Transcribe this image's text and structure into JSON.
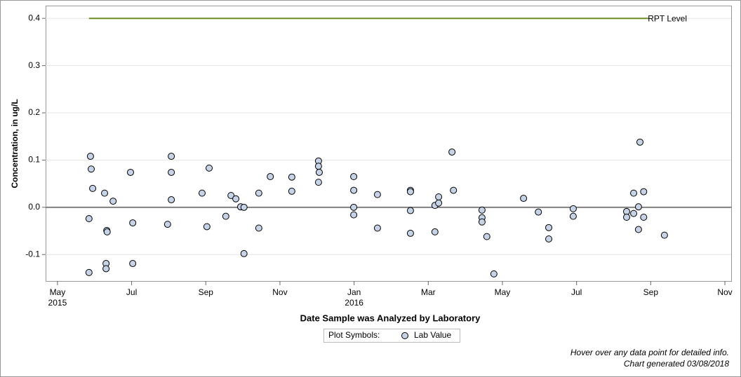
{
  "chart_data": {
    "type": "scatter",
    "x_label": "Date Sample was Analyzed by Laboratory",
    "y_label": "Concentration, in ug/L",
    "xlim": [
      -0.32,
      18.17
    ],
    "ylim": [
      -0.156,
      0.427
    ],
    "xticks": [
      {
        "value": 0,
        "label": "May 2015"
      },
      {
        "value": 2,
        "label": "Jul"
      },
      {
        "value": 4,
        "label": "Sep"
      },
      {
        "value": 6,
        "label": "Nov"
      },
      {
        "value": 8,
        "label": "Jan 2016"
      },
      {
        "value": 10,
        "label": "Mar"
      },
      {
        "value": 12,
        "label": "May"
      },
      {
        "value": 14,
        "label": "Jul"
      },
      {
        "value": 16,
        "label": "Sep"
      },
      {
        "value": 18,
        "label": "Nov"
      }
    ],
    "yticks": [
      -0.1,
      {
        "value": 0,
        "label": "0.0"
      },
      0.1,
      0.2,
      0.3,
      0.4
    ],
    "grid": true,
    "reference_line": {
      "name": "RPT Level",
      "value": 0.4,
      "x": [
        0.85,
        15.96
      ],
      "color": "#6b8e23"
    },
    "legend_title": "Plot Symbols:",
    "series": [
      {
        "name": "Lab Value",
        "color": "#c6d3e6",
        "x": [
          0.85,
          0.85,
          0.89,
          0.91,
          0.95,
          1.27,
          1.31,
          1.31,
          1.33,
          1.34,
          1.5,
          1.97,
          2.03,
          2.03,
          2.97,
          3.07,
          3.07,
          3.07,
          3.9,
          4.03,
          4.09,
          4.54,
          4.68,
          4.81,
          4.94,
          5.03,
          5.03,
          5.43,
          5.43,
          5.74,
          6.32,
          6.32,
          7.04,
          7.04,
          7.06,
          7.04,
          7.99,
          7.99,
          7.99,
          7.99,
          8.63,
          8.63,
          9.52,
          9.52,
          9.52,
          9.52,
          10.18,
          10.18,
          10.28,
          10.28,
          10.64,
          10.68,
          11.45,
          11.45,
          11.45,
          11.58,
          11.77,
          12.57,
          12.97,
          13.25,
          13.25,
          13.91,
          13.91,
          15.35,
          15.35,
          15.54,
          15.54,
          15.67,
          15.67,
          15.71,
          15.81,
          15.81,
          16.37
        ],
        "values": [
          -0.138,
          -0.024,
          0.108,
          0.081,
          0.04,
          0.03,
          -0.119,
          -0.13,
          -0.049,
          -0.052,
          0.013,
          0.074,
          -0.033,
          -0.119,
          -0.036,
          0.108,
          0.074,
          0.016,
          0.03,
          -0.041,
          0.083,
          -0.019,
          0.025,
          0.018,
          0.001,
          0.0,
          -0.098,
          0.03,
          -0.044,
          0.065,
          0.064,
          0.034,
          0.098,
          0.087,
          0.074,
          0.053,
          0.065,
          0.036,
          0.0,
          -0.016,
          0.027,
          -0.044,
          0.036,
          0.033,
          -0.007,
          -0.055,
          0.004,
          -0.052,
          0.022,
          0.009,
          0.117,
          0.036,
          -0.006,
          -0.022,
          -0.031,
          -0.062,
          -0.141,
          0.019,
          -0.01,
          -0.043,
          -0.067,
          -0.003,
          -0.019,
          -0.009,
          -0.021,
          0.03,
          -0.013,
          0.001,
          -0.047,
          0.138,
          0.033,
          -0.021,
          -0.059
        ]
      }
    ],
    "footnotes": [
      "Hover over any data point for detailed info.",
      "Chart generated 03/08/2018"
    ]
  }
}
